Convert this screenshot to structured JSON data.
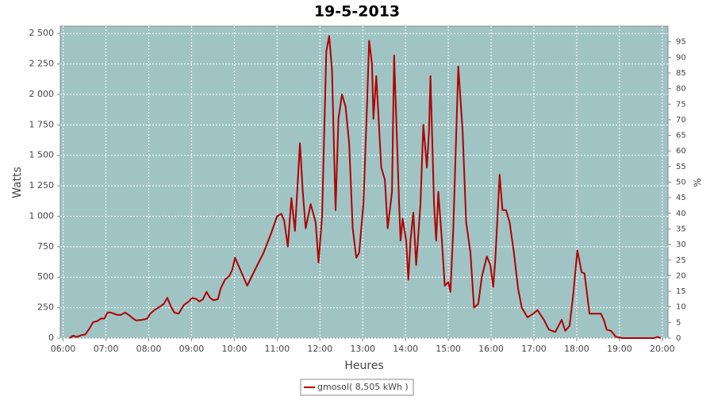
{
  "chart_data": {
    "type": "line",
    "title": "19-5-2013",
    "x_label": "Heures",
    "y_label": "Watts",
    "y2_label": "%",
    "x": [
      369,
      374,
      379,
      386,
      391,
      397,
      402,
      408,
      413,
      418,
      422,
      427,
      436,
      441,
      447,
      452,
      458,
      462,
      471,
      478,
      482,
      488,
      496,
      501,
      506,
      511,
      516,
      522,
      529,
      536,
      541,
      547,
      551,
      556,
      561,
      566,
      571,
      577,
      581,
      587,
      593,
      597,
      601,
      618,
      629,
      641,
      651,
      660,
      666,
      670,
      675,
      680,
      685,
      692,
      696,
      700,
      707,
      714,
      718,
      723,
      729,
      733,
      737,
      742,
      746,
      751,
      756,
      761,
      766,
      771,
      775,
      781,
      786,
      789,
      793,
      795,
      799,
      806,
      811,
      815,
      821,
      824,
      831,
      833,
      836,
      841,
      844,
      847,
      851,
      855,
      861,
      865,
      870,
      873,
      875,
      880,
      883,
      886,
      891,
      895,
      900,
      903,
      907,
      914,
      920,
      925,
      931,
      936,
      942,
      947,
      954,
      959,
      963,
      966,
      972,
      976,
      981,
      986,
      992,
      998,
      1003,
      1011,
      1019,
      1025,
      1034,
      1041,
      1050,
      1059,
      1064,
      1070,
      1075,
      1081,
      1087,
      1091,
      1098,
      1109,
      1114,
      1118,
      1122,
      1128,
      1135,
      1144,
      1189,
      1193,
      1198
    ],
    "series": [
      {
        "name": "gmosol( 8,505 kWh )",
        "color": "#b00000",
        "values": [
          0,
          20,
          10,
          25,
          30,
          80,
          130,
          140,
          160,
          160,
          210,
          210,
          190,
          190,
          210,
          190,
          160,
          145,
          150,
          160,
          200,
          230,
          260,
          280,
          330,
          260,
          210,
          200,
          270,
          300,
          330,
          320,
          300,
          320,
          380,
          330,
          310,
          320,
          410,
          480,
          510,
          560,
          660,
          430,
          560,
          700,
          850,
          1000,
          1020,
          960,
          750,
          1150,
          880,
          1600,
          1200,
          900,
          1100,
          950,
          620,
          1000,
          2350,
          2480,
          2200,
          1050,
          1800,
          2000,
          1900,
          1600,
          900,
          660,
          700,
          1100,
          1900,
          2440,
          2250,
          1800,
          2150,
          1400,
          1300,
          900,
          1200,
          2320,
          1100,
          800,
          980,
          800,
          480,
          800,
          1030,
          600,
          1100,
          1750,
          1400,
          1700,
          2150,
          1100,
          800,
          1200,
          800,
          430,
          460,
          380,
          900,
          2230,
          1700,
          950,
          700,
          250,
          280,
          500,
          670,
          600,
          420,
          650,
          1340,
          1050,
          1050,
          950,
          700,
          400,
          250,
          170,
          200,
          230,
          150,
          70,
          50,
          150,
          60,
          100,
          350,
          720,
          540,
          530,
          200,
          200,
          200,
          150,
          70,
          60,
          10,
          0,
          0,
          10,
          0
        ]
      }
    ],
    "xlim": [
      356,
      1208
    ],
    "xticks": [
      {
        "value": 360,
        "label": "06:00"
      },
      {
        "value": 420,
        "label": "07:00"
      },
      {
        "value": 480,
        "label": "08:00"
      },
      {
        "value": 540,
        "label": "09:00"
      },
      {
        "value": 600,
        "label": "10:00"
      },
      {
        "value": 660,
        "label": "11:00"
      },
      {
        "value": 720,
        "label": "12:00"
      },
      {
        "value": 780,
        "label": "13:00"
      },
      {
        "value": 840,
        "label": "14:00"
      },
      {
        "value": 900,
        "label": "15:00"
      },
      {
        "value": 960,
        "label": "16:00"
      },
      {
        "value": 1020,
        "label": "17:00"
      },
      {
        "value": 1080,
        "label": "18:00"
      },
      {
        "value": 1140,
        "label": "19:00"
      },
      {
        "value": 1200,
        "label": "20:00"
      }
    ],
    "ylim": [
      0,
      2560
    ],
    "yticks": [
      0,
      250,
      500,
      750,
      {
        "value": 1000,
        "label": "1 000"
      },
      {
        "value": 1250,
        "label": "1 250"
      },
      {
        "value": 1500,
        "label": "1 500"
      },
      {
        "value": 1750,
        "label": "1 750"
      },
      {
        "value": 2000,
        "label": "2 000"
      },
      {
        "value": 2250,
        "label": "2 250"
      },
      {
        "value": 2500,
        "label": "2 500"
      }
    ],
    "y2lim": [
      0,
      100
    ],
    "y2ticks": [
      0,
      5,
      10,
      15,
      20,
      25,
      30,
      35,
      40,
      45,
      50,
      55,
      60,
      65,
      70,
      75,
      80,
      85,
      90,
      95
    ],
    "grid": true,
    "legend": "bottom",
    "plot_background": "#a0c4c4"
  }
}
